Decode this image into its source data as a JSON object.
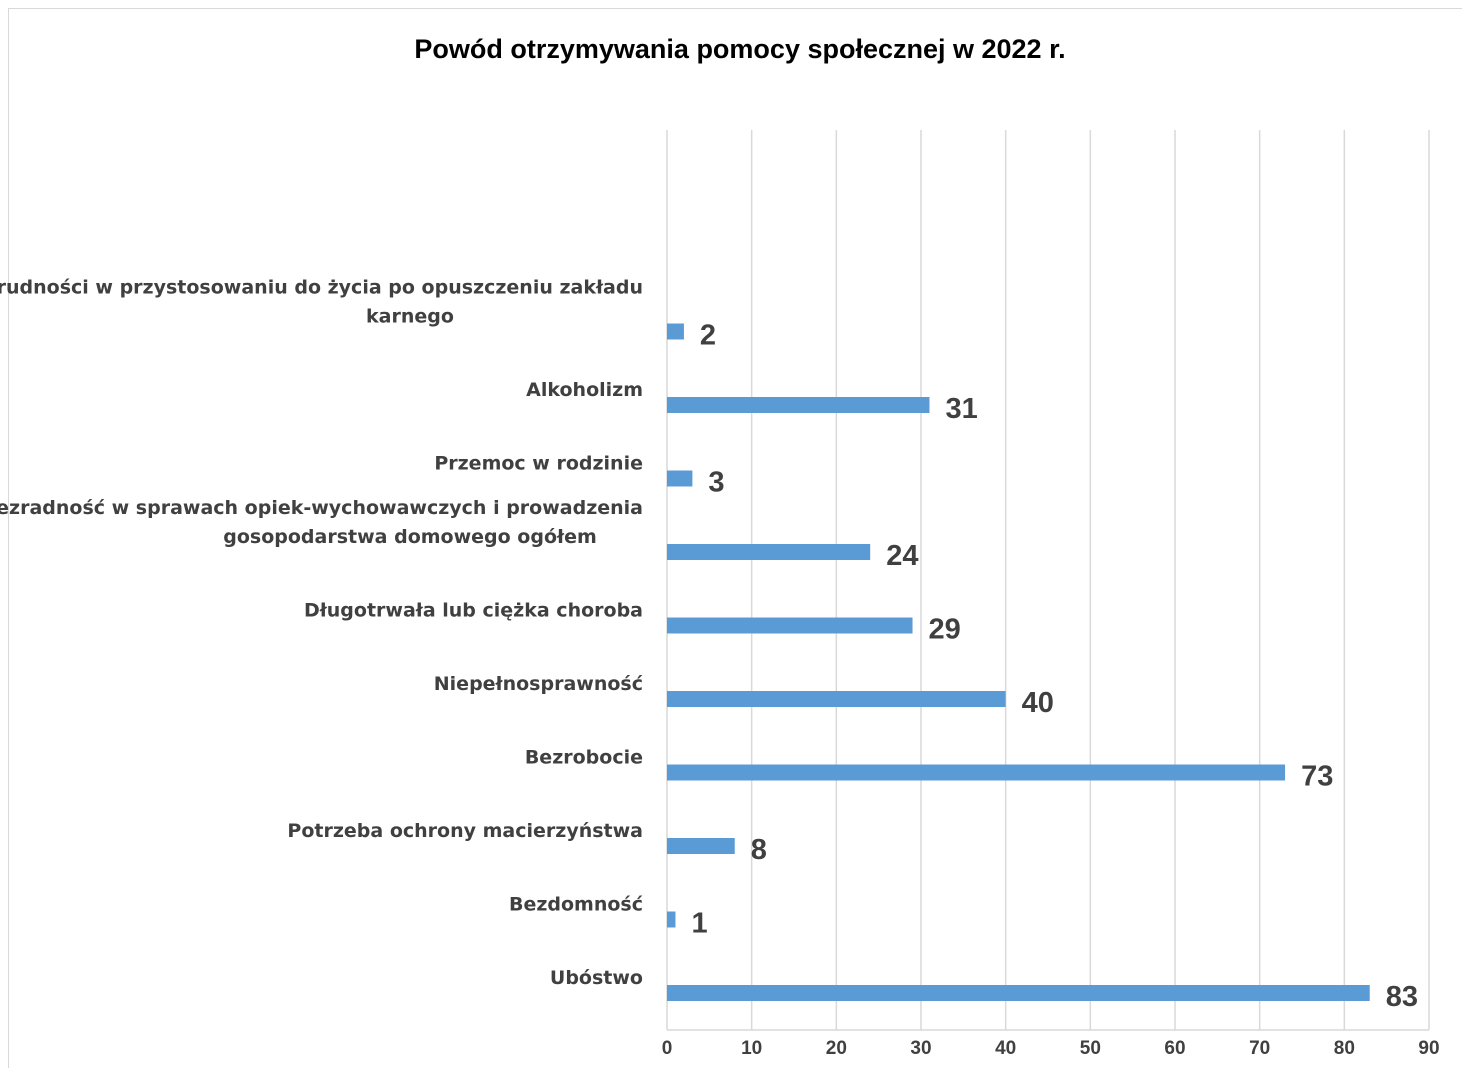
{
  "chart_data": {
    "type": "bar",
    "orientation": "horizontal",
    "title": "Powód otrzymywania pomocy społecznej w 2022 r.",
    "xlabel": "",
    "ylabel": "",
    "categories": [
      [
        "Ubóstwo"
      ],
      [
        "Bezdomność"
      ],
      [
        "Potrzeba ochrony macierzyństwa"
      ],
      [
        "Bezrobocie"
      ],
      [
        "Niepełnosprawność"
      ],
      [
        "Długotrwała lub ciężka choroba"
      ],
      [
        "Bezradność w sprawach opiek-wychowawczych i prowadzenia",
        "gosopodarstwa domowego ogółem"
      ],
      [
        "Przemoc w rodzinie"
      ],
      [
        "Alkoholizm"
      ],
      [
        "Trudności w przystosowaniu do życia po opuszczeniu zakładu",
        "karnego"
      ]
    ],
    "values": [
      83,
      1,
      8,
      73,
      40,
      29,
      24,
      3,
      31,
      2
    ],
    "xlim": [
      0,
      90
    ],
    "xticks": [
      0,
      10,
      20,
      30,
      40,
      50,
      60,
      70,
      80,
      90
    ],
    "grid": "vertical",
    "legend": "none",
    "colors": {
      "bar": "#5b9bd5",
      "grid": "#d9d9d9",
      "label": "#404040"
    }
  }
}
